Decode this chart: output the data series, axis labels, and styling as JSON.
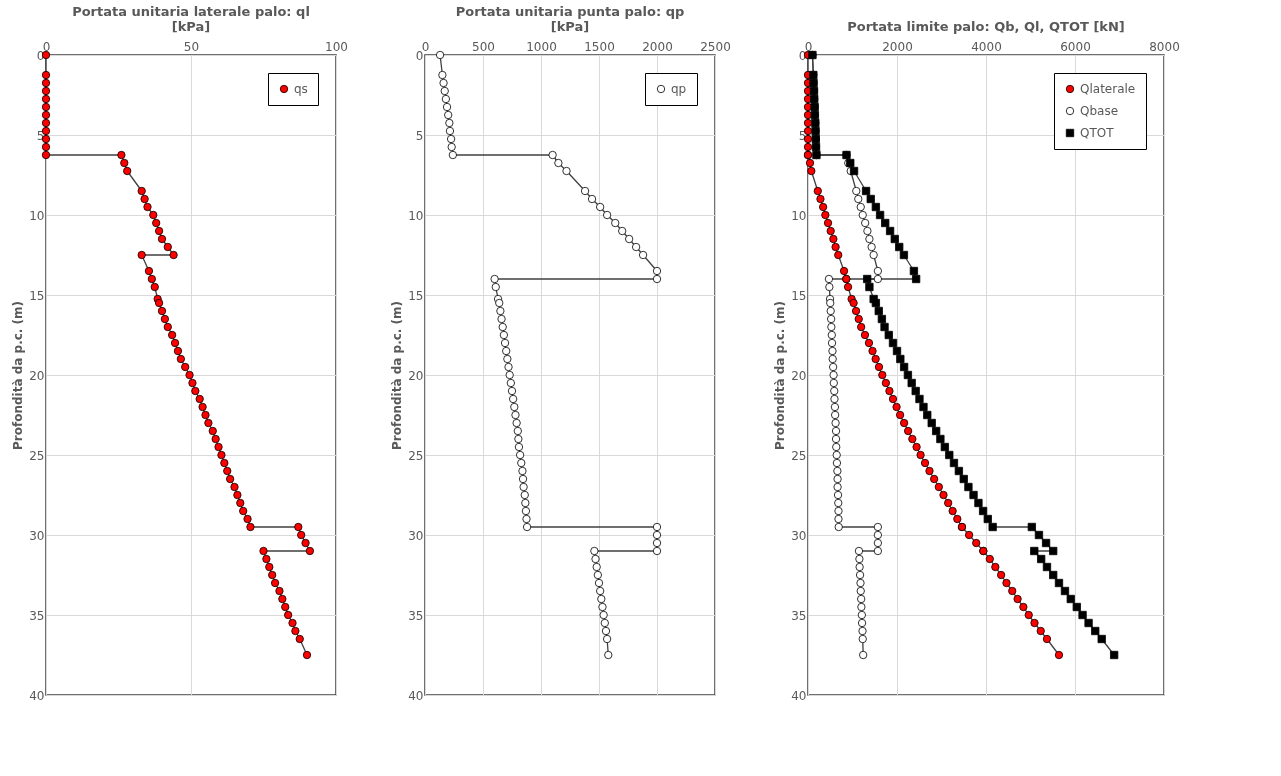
{
  "chart_data": [
    {
      "type": "line",
      "title": "Portata unitaria laterale palo: ql\n[kPa]",
      "ylabel": "Profondità da p.c. (m)",
      "xlim": [
        0,
        100
      ],
      "xticks": [
        0,
        50,
        100
      ],
      "ylim": [
        40,
        0
      ],
      "yticks": [
        0,
        5,
        10,
        15,
        20,
        25,
        30,
        35,
        40
      ],
      "grid": true,
      "legend": "top right",
      "series": [
        {
          "name": "qs",
          "color": "#ff0000",
          "marker": "circle",
          "x": [
            0,
            0,
            0,
            0,
            0,
            0,
            0,
            0,
            0,
            0,
            0,
            0,
            26,
            27,
            28,
            33,
            34,
            35,
            37,
            38,
            39,
            40,
            42,
            44,
            33,
            35.5,
            36.5,
            37.5,
            38.5,
            39,
            40,
            41,
            42,
            43.5,
            44.5,
            45.5,
            46.5,
            48,
            49.5,
            50.5,
            51.5,
            53,
            54,
            55,
            56,
            57.5,
            58.5,
            59.5,
            60.5,
            61.5,
            62.5,
            63.5,
            65,
            66,
            67,
            68,
            69.5,
            70.5,
            87,
            88,
            89.5,
            91,
            75,
            76,
            77,
            78,
            79,
            80.5,
            81.5,
            82.5,
            83.5,
            85,
            86,
            87.5,
            90
          ],
          "values": [
            0,
            1.25,
            1.75,
            2.25,
            2.75,
            3.25,
            3.75,
            4.25,
            4.75,
            5.25,
            5.75,
            6.25,
            6.25,
            6.75,
            7.25,
            8.5,
            9,
            9.5,
            10,
            10.5,
            11,
            11.5,
            12,
            12.5,
            12.5,
            13.5,
            14,
            14.5,
            15.25,
            15.5,
            16,
            16.5,
            17,
            17.5,
            18,
            18.5,
            19,
            19.5,
            20,
            20.5,
            21,
            21.5,
            22,
            22.5,
            23,
            23.5,
            24,
            24.5,
            25,
            25.5,
            26,
            26.5,
            27,
            27.5,
            28,
            28.5,
            29,
            29.5,
            29.5,
            30,
            30.5,
            31,
            31,
            31.5,
            32,
            32.5,
            33,
            33.5,
            34,
            34.5,
            35,
            35.5,
            36,
            36.5,
            37.5
          ]
        }
      ]
    },
    {
      "type": "line",
      "title": "Portata unitaria punta palo: qp\n[kPa]",
      "ylabel": "Profondità da p.c. (m)",
      "xlim": [
        0,
        2500
      ],
      "xticks": [
        0,
        500,
        1000,
        1500,
        2000,
        2500
      ],
      "ylim": [
        40,
        0
      ],
      "yticks": [
        0,
        5,
        10,
        15,
        20,
        25,
        30,
        35,
        40
      ],
      "grid": true,
      "legend": "top right",
      "series": [
        {
          "name": "qp",
          "color": "#ffffff",
          "marker": "circle",
          "x": [
            130,
            150,
            160,
            170,
            180,
            190,
            200,
            210,
            215,
            225,
            230,
            240,
            1100,
            1150,
            1220,
            1380,
            1440,
            1510,
            1570,
            1640,
            1700,
            1760,
            1820,
            1880,
            2000,
            2000,
            600,
            610,
            630,
            640,
            650,
            660,
            670,
            680,
            690,
            700,
            710,
            720,
            730,
            740,
            750,
            760,
            770,
            780,
            790,
            800,
            805,
            810,
            820,
            830,
            840,
            845,
            850,
            860,
            865,
            870,
            875,
            880,
            2000,
            2000,
            2000,
            2000,
            1460,
            1470,
            1480,
            1490,
            1500,
            1510,
            1520,
            1530,
            1540,
            1550,
            1560,
            1570,
            1580
          ],
          "values": [
            0,
            1.25,
            1.75,
            2.25,
            2.75,
            3.25,
            3.75,
            4.25,
            4.75,
            5.25,
            5.75,
            6.25,
            6.25,
            6.75,
            7.25,
            8.5,
            9,
            9.5,
            10,
            10.5,
            11,
            11.5,
            12,
            12.5,
            13.5,
            14,
            14,
            14.5,
            15.25,
            15.5,
            16,
            16.5,
            17,
            17.5,
            18,
            18.5,
            19,
            19.5,
            20,
            20.5,
            21,
            21.5,
            22,
            22.5,
            23,
            23.5,
            24,
            24.5,
            25,
            25.5,
            26,
            26.5,
            27,
            27.5,
            28,
            28.5,
            29,
            29.5,
            29.5,
            30,
            30.5,
            31,
            31,
            31.5,
            32,
            32.5,
            33,
            33.5,
            34,
            34.5,
            35,
            35.5,
            36,
            36.5,
            37.5
          ]
        }
      ]
    },
    {
      "type": "line",
      "title": "Portata limite palo: Qb, Ql, QTOT [kN]",
      "ylabel": "Profondità da p.c. (m)",
      "xlim": [
        0,
        8000
      ],
      "xticks": [
        0,
        2000,
        4000,
        6000,
        8000
      ],
      "ylim": [
        40,
        0
      ],
      "yticks": [
        0,
        5,
        10,
        15,
        20,
        25,
        30,
        35,
        40
      ],
      "grid": true,
      "legend": "top right",
      "series": [
        {
          "name": "Qlaterale",
          "color": "#ff0000",
          "marker": "circle",
          "x": [
            0,
            0,
            0,
            0,
            0,
            0,
            0,
            0,
            0,
            0,
            0,
            0,
            0,
            45,
            75,
            220,
            280,
            340,
            390,
            450,
            510,
            570,
            620,
            680,
            810,
            860,
            860,
            900,
            980,
            1025,
            1080,
            1140,
            1195,
            1280,
            1370,
            1450,
            1520,
            1595,
            1670,
            1750,
            1830,
            1910,
            1990,
            2070,
            2160,
            2250,
            2345,
            2440,
            2530,
            2630,
            2730,
            2835,
            2940,
            3045,
            3150,
            3250,
            3355,
            3460,
            3460,
            3620,
            3780,
            3940,
            3940,
            4085,
            4210,
            4340,
            4460,
            4590,
            4710,
            4840,
            4960,
            5090,
            5230,
            5370,
            5640
          ],
          "values": [
            0,
            1.25,
            1.75,
            2.25,
            2.75,
            3.25,
            3.75,
            4.25,
            4.75,
            5.25,
            5.75,
            6.25,
            6.25,
            6.75,
            7.25,
            8.5,
            9,
            9.5,
            10,
            10.5,
            11,
            11.5,
            12,
            12.5,
            13.5,
            14,
            14,
            14.5,
            15.25,
            15.5,
            16,
            16.5,
            17,
            17.5,
            18,
            18.5,
            19,
            19.5,
            20,
            20.5,
            21,
            21.5,
            22,
            22.5,
            23,
            23.5,
            24,
            24.5,
            25,
            25.5,
            26,
            26.5,
            27,
            27.5,
            28,
            28.5,
            29,
            29.5,
            29.5,
            30,
            30.5,
            31,
            31,
            31.5,
            32,
            32.5,
            33,
            33.5,
            34,
            34.5,
            35,
            35.5,
            36,
            36.5,
            37.5
          ]
        },
        {
          "name": "Qbase",
          "color": "#ffffff",
          "marker": "circle",
          "x": [
            100,
            120,
            125,
            135,
            140,
            150,
            155,
            165,
            170,
            175,
            180,
            190,
            865,
            905,
            960,
            1085,
            1130,
            1185,
            1230,
            1285,
            1335,
            1380,
            1430,
            1475,
            1570,
            1570,
            470,
            480,
            495,
            500,
            510,
            520,
            525,
            535,
            540,
            550,
            555,
            565,
            575,
            580,
            590,
            595,
            605,
            610,
            620,
            630,
            630,
            635,
            645,
            650,
            660,
            665,
            665,
            675,
            680,
            685,
            685,
            690,
            1570,
            1570,
            1570,
            1570,
            1145,
            1155,
            1160,
            1170,
            1180,
            1185,
            1195,
            1200,
            1210,
            1215,
            1225,
            1230,
            1240
          ],
          "values": [
            0,
            1.25,
            1.75,
            2.25,
            2.75,
            3.25,
            3.75,
            4.25,
            4.75,
            5.25,
            5.75,
            6.25,
            6.25,
            6.75,
            7.25,
            8.5,
            9,
            9.5,
            10,
            10.5,
            11,
            11.5,
            12,
            12.5,
            13.5,
            14,
            14,
            14.5,
            15.25,
            15.5,
            16,
            16.5,
            17,
            17.5,
            18,
            18.5,
            19,
            19.5,
            20,
            20.5,
            21,
            21.5,
            22,
            22.5,
            23,
            23.5,
            24,
            24.5,
            25,
            25.5,
            26,
            26.5,
            27,
            27.5,
            28,
            28.5,
            29,
            29.5,
            29.5,
            30,
            30.5,
            31,
            31,
            31.5,
            32,
            32.5,
            33,
            33.5,
            34,
            34.5,
            35,
            35.5,
            36,
            36.5,
            37.5
          ]
        },
        {
          "name": "QTOT",
          "color": "#000000",
          "marker": "square",
          "x": [
            100,
            120,
            125,
            135,
            140,
            150,
            155,
            165,
            170,
            175,
            180,
            190,
            865,
            950,
            1035,
            1305,
            1410,
            1525,
            1620,
            1735,
            1845,
            1950,
            2050,
            2155,
            2380,
            2430,
            1330,
            1380,
            1475,
            1525,
            1590,
            1660,
            1720,
            1815,
            1910,
            2000,
            2075,
            2160,
            2245,
            2330,
            2420,
            2505,
            2595,
            2680,
            2780,
            2880,
            2975,
            3075,
            3175,
            3280,
            3390,
            3500,
            3605,
            3720,
            3830,
            3935,
            4040,
            4150,
            5030,
            5190,
            5350,
            5510,
            5085,
            5240,
            5370,
            5510,
            5640,
            5775,
            5905,
            6040,
            6170,
            6305,
            6455,
            6600,
            6880
          ],
          "values": [
            0,
            1.25,
            1.75,
            2.25,
            2.75,
            3.25,
            3.75,
            4.25,
            4.75,
            5.25,
            5.75,
            6.25,
            6.25,
            6.75,
            7.25,
            8.5,
            9,
            9.5,
            10,
            10.5,
            11,
            11.5,
            12,
            12.5,
            13.5,
            14,
            14,
            14.5,
            15.25,
            15.5,
            16,
            16.5,
            17,
            17.5,
            18,
            18.5,
            19,
            19.5,
            20,
            20.5,
            21,
            21.5,
            22,
            22.5,
            23,
            23.5,
            24,
            24.5,
            25,
            25.5,
            26,
            26.5,
            27,
            27.5,
            28,
            28.5,
            29,
            29.5,
            29.5,
            30,
            30.5,
            31,
            31,
            31.5,
            32,
            32.5,
            33,
            33.5,
            34,
            34.5,
            35,
            35.5,
            36,
            36.5,
            37.5
          ]
        }
      ]
    }
  ]
}
